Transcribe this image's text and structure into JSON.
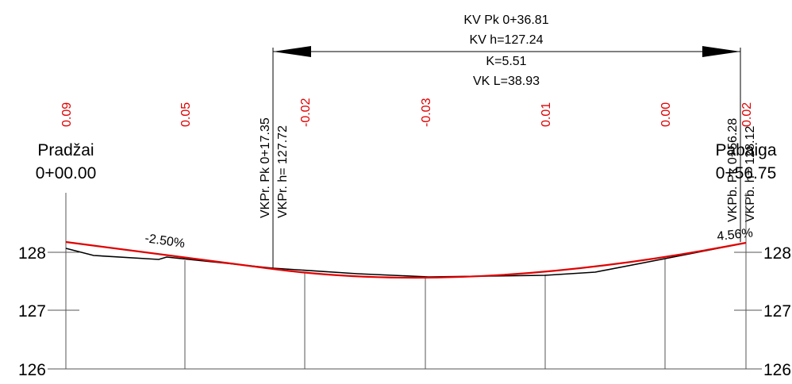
{
  "vertical_curve": {
    "pk": "KV Pk 0+36.81",
    "h": "KV h=127.24",
    "k": "K=5.51",
    "length": "VK L=38.93"
  },
  "differences": [
    "0.09",
    "0.05",
    "-0.02",
    "-0.03",
    "0.01",
    "0.00",
    "0.02"
  ],
  "start": {
    "label": "Pradžai",
    "station": "0+00.00"
  },
  "end": {
    "label": "Pabaiga",
    "station": "0+56.75"
  },
  "curve_start": {
    "pk": "VKPr. Pk 0+17.35",
    "h": "VKPr. h= 127.72"
  },
  "curve_end": {
    "pk": "VKPb. Pk 0+56.28",
    "h": "VKPb. h= 128.12"
  },
  "grades": [
    "-2.50%",
    "4.56%"
  ],
  "left_axis": [
    "128",
    "127",
    "126"
  ],
  "right_axis": [
    "128",
    "127",
    "126"
  ]
}
